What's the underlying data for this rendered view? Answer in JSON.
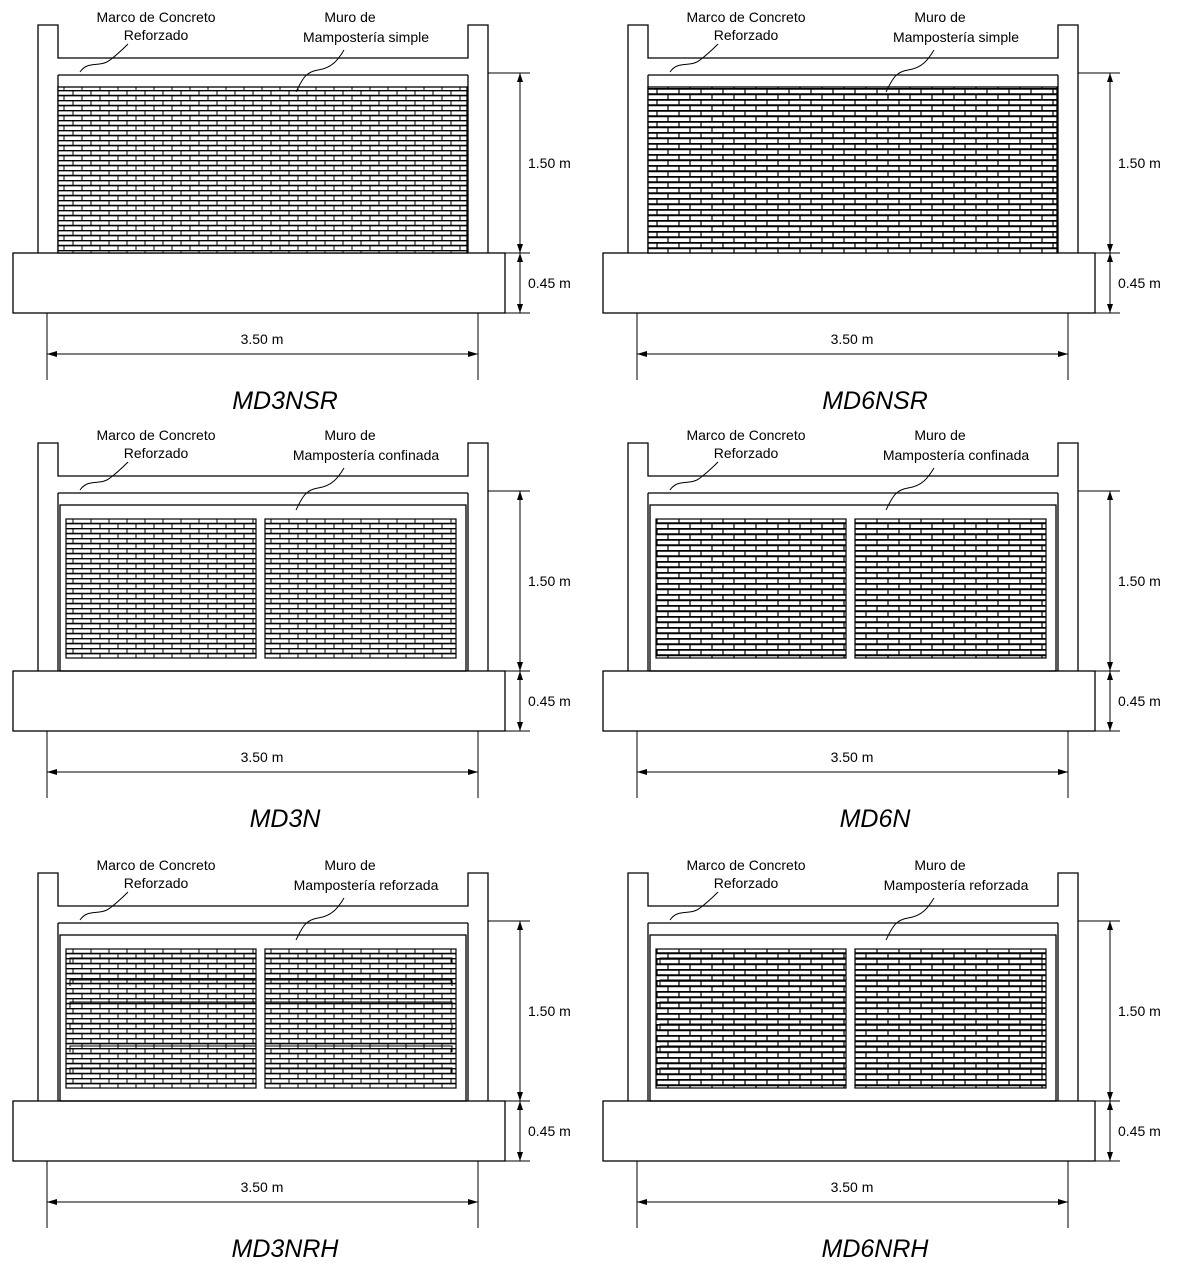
{
  "frame_label_line1": "Marco de Concreto",
  "frame_label_line2": "Reforzado",
  "wall_label_line1": "Muro de",
  "height_upper": "1.50 m",
  "height_base": "0.45 m",
  "width": "3.50 m",
  "panels": [
    {
      "title": "MD3NSR",
      "wall_label_line2": "Mampostería simple",
      "type": "simple",
      "scale": 3
    },
    {
      "title": "MD6NSR",
      "wall_label_line2": "Mampostería simple",
      "type": "simple",
      "scale": 6
    },
    {
      "title": "MD3N",
      "wall_label_line2": "Mampostería confinada",
      "type": "confinada",
      "scale": 3
    },
    {
      "title": "MD6N",
      "wall_label_line2": "Mampostería confinada",
      "type": "confinada",
      "scale": 6
    },
    {
      "title": "MD3NRH",
      "wall_label_line2": "Mampostería reforzada",
      "type": "reforzada",
      "scale": 3
    },
    {
      "title": "MD6NRH",
      "wall_label_line2": "Mampostería reforzada",
      "type": "reforzada",
      "scale": 6
    }
  ]
}
